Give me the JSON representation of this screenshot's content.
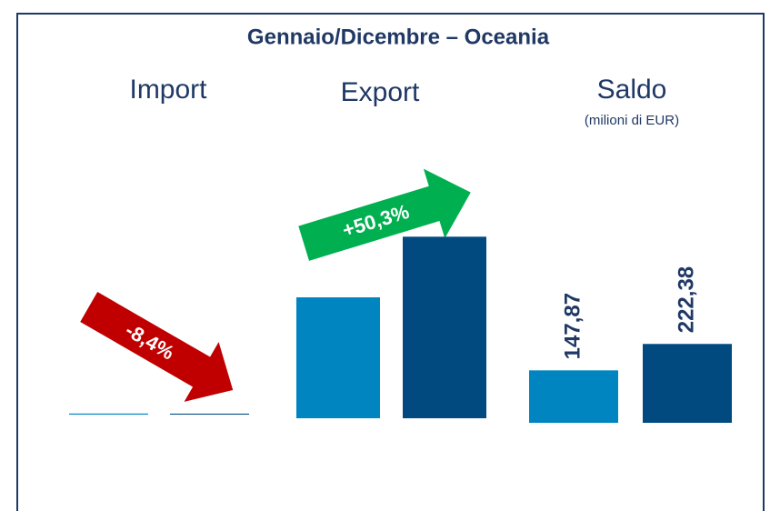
{
  "chart_data": {
    "type": "bar",
    "title": "Gennaio/Dicembre – Oceania",
    "colors": [
      "#0085c0",
      "#004a80"
    ],
    "groups": [
      {
        "label": "Import",
        "values": [
          3.0,
          2.75
        ],
        "change": "-8,4%"
      },
      {
        "label": "Export",
        "values": [
          341,
          512
        ],
        "change": "+50,3%"
      },
      {
        "label": "Saldo",
        "subtitle": "(milioni di EUR)",
        "values": [
          147.87,
          222.38
        ],
        "value_labels": [
          "147,87",
          "222,38"
        ]
      }
    ]
  }
}
